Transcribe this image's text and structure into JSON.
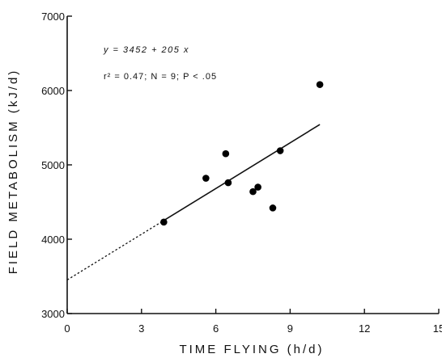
{
  "chart_data": {
    "type": "scatter",
    "xlabel": "TIME  FLYING  (h/d)",
    "ylabel": "FIELD  METABOLISM  (kJ/d)",
    "xlim": [
      0,
      15
    ],
    "ylim": [
      3000,
      7000
    ],
    "x_ticks": [
      0,
      3,
      6,
      9,
      12,
      15
    ],
    "x_tick_labels": [
      "0",
      "3",
      "6",
      "9",
      "12",
      "15"
    ],
    "y_ticks": [
      3000,
      4000,
      5000,
      6000,
      7000
    ],
    "y_tick_labels": [
      "3000",
      "4000",
      "5000",
      "6000",
      "7000"
    ],
    "points": [
      {
        "x": 3.9,
        "y": 4230
      },
      {
        "x": 5.6,
        "y": 4820
      },
      {
        "x": 6.4,
        "y": 5150
      },
      {
        "x": 6.5,
        "y": 4760
      },
      {
        "x": 7.5,
        "y": 4640
      },
      {
        "x": 7.7,
        "y": 4700
      },
      {
        "x": 8.3,
        "y": 4420
      },
      {
        "x": 8.6,
        "y": 5190
      },
      {
        "x": 10.2,
        "y": 6080
      }
    ],
    "regression": {
      "intercept": 3452,
      "slope": 205,
      "solid_from_x": 3.9,
      "solid_to_x": 10.2,
      "dashed_from_x": 0
    },
    "equation": "y = 3452 + 205 x",
    "stats": "r² = 0.47; N = 9; P < .05",
    "grid": false,
    "legend": "none"
  }
}
